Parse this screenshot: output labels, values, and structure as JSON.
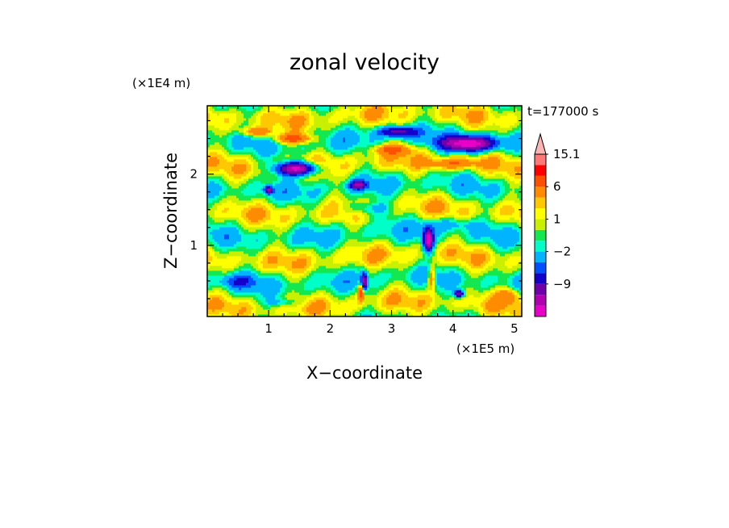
{
  "chart_data": {
    "type": "heatmap",
    "title": "zonal velocity",
    "xlabel": "X−coordinate",
    "ylabel": "Z−coordinate",
    "x_multiplier": "(×1E5 m)",
    "y_multiplier": "(×1E4 m)",
    "time_label": "t=177000 s",
    "xlim": [
      0,
      5.12
    ],
    "ylim": [
      0,
      2.96
    ],
    "x_ticks": [
      1,
      2,
      3,
      4,
      5
    ],
    "x_tick_labels": [
      "1",
      "2",
      "3",
      "4",
      "5"
    ],
    "y_ticks": [
      1,
      2
    ],
    "y_tick_labels": [
      "1",
      "2"
    ],
    "colorbar": {
      "levels": [
        -15,
        -12,
        -9,
        -6,
        -4,
        -2,
        -1,
        0,
        1,
        2,
        3,
        6,
        9,
        12,
        15.1
      ],
      "colors": [
        "#e800c8",
        "#b000b0",
        "#7000a8",
        "#1400c8",
        "#0050ff",
        "#00b4ff",
        "#00ffc8",
        "#14e850",
        "#c8f000",
        "#ffff00",
        "#ffc800",
        "#ff8c00",
        "#ff5000",
        "#ff0000",
        "#ff7878",
        "#ffb4b4"
      ],
      "labels": [
        {
          "value": 15.1,
          "text": "15.1"
        },
        {
          "value": 6,
          "text": "6"
        },
        {
          "value": 1,
          "text": "1"
        },
        {
          "value": -2,
          "text": "−2"
        },
        {
          "value": -9,
          "text": "−9"
        }
      ]
    }
  }
}
